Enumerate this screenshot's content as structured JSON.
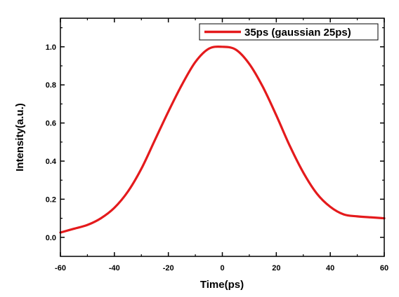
{
  "chart_data": {
    "type": "line",
    "xlabel": "Time(ps)",
    "ylabel": "Intensity(a.u.)",
    "xlim": [
      -60,
      60
    ],
    "ylim": [
      -0.1,
      1.15
    ],
    "x_ticks": [
      -60,
      -40,
      -20,
      0,
      20,
      40,
      60
    ],
    "y_ticks": [
      0.0,
      0.2,
      0.4,
      0.6,
      0.8,
      1.0
    ],
    "x_tick_labels": [
      "-60",
      "-40",
      "-20",
      "0",
      "20",
      "40",
      "60"
    ],
    "y_tick_labels": [
      "0.0",
      "0.2",
      "0.4",
      "0.6",
      "0.8",
      "1.0"
    ],
    "grid": false,
    "legend_position": "top-right",
    "colors": {
      "series": "#e41a1c",
      "axes": "#000000"
    },
    "series": [
      {
        "name": "35ps (gaussian 25ps)",
        "x": [
          -60,
          -55,
          -50,
          -45,
          -40,
          -35,
          -30,
          -25,
          -20,
          -15,
          -10,
          -5,
          0,
          5,
          10,
          15,
          20,
          25,
          30,
          35,
          40,
          45,
          50,
          55,
          60
        ],
        "y": [
          0.025,
          0.045,
          0.065,
          0.1,
          0.155,
          0.24,
          0.36,
          0.51,
          0.66,
          0.8,
          0.92,
          0.99,
          1.0,
          0.985,
          0.91,
          0.79,
          0.64,
          0.48,
          0.34,
          0.23,
          0.16,
          0.12,
          0.11,
          0.105,
          0.1
        ]
      }
    ]
  }
}
